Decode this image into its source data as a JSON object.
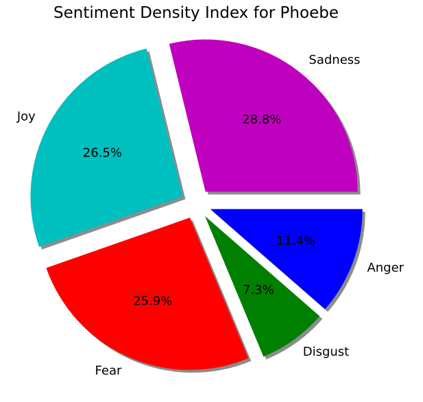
{
  "chart_data": {
    "type": "pie",
    "title": "Sentiment Density Index for Phoebe",
    "slices": [
      {
        "label": "Sadness",
        "value": 28.8,
        "pct_label": "28.8%",
        "color": "#bf00bf"
      },
      {
        "label": "Joy",
        "value": 26.5,
        "pct_label": "26.5%",
        "color": "#00bfbf"
      },
      {
        "label": "Fear",
        "value": 25.9,
        "pct_label": "25.9%",
        "color": "#ff0000"
      },
      {
        "label": "Disgust",
        "value": 7.3,
        "pct_label": "7.3%",
        "color": "#008000"
      },
      {
        "label": "Anger",
        "value": 11.4,
        "pct_label": "11.4%",
        "color": "#0000ff"
      }
    ],
    "start_angle": 0,
    "direction": "counterclockwise",
    "exploded": true,
    "shadow": true,
    "legend": "none"
  }
}
